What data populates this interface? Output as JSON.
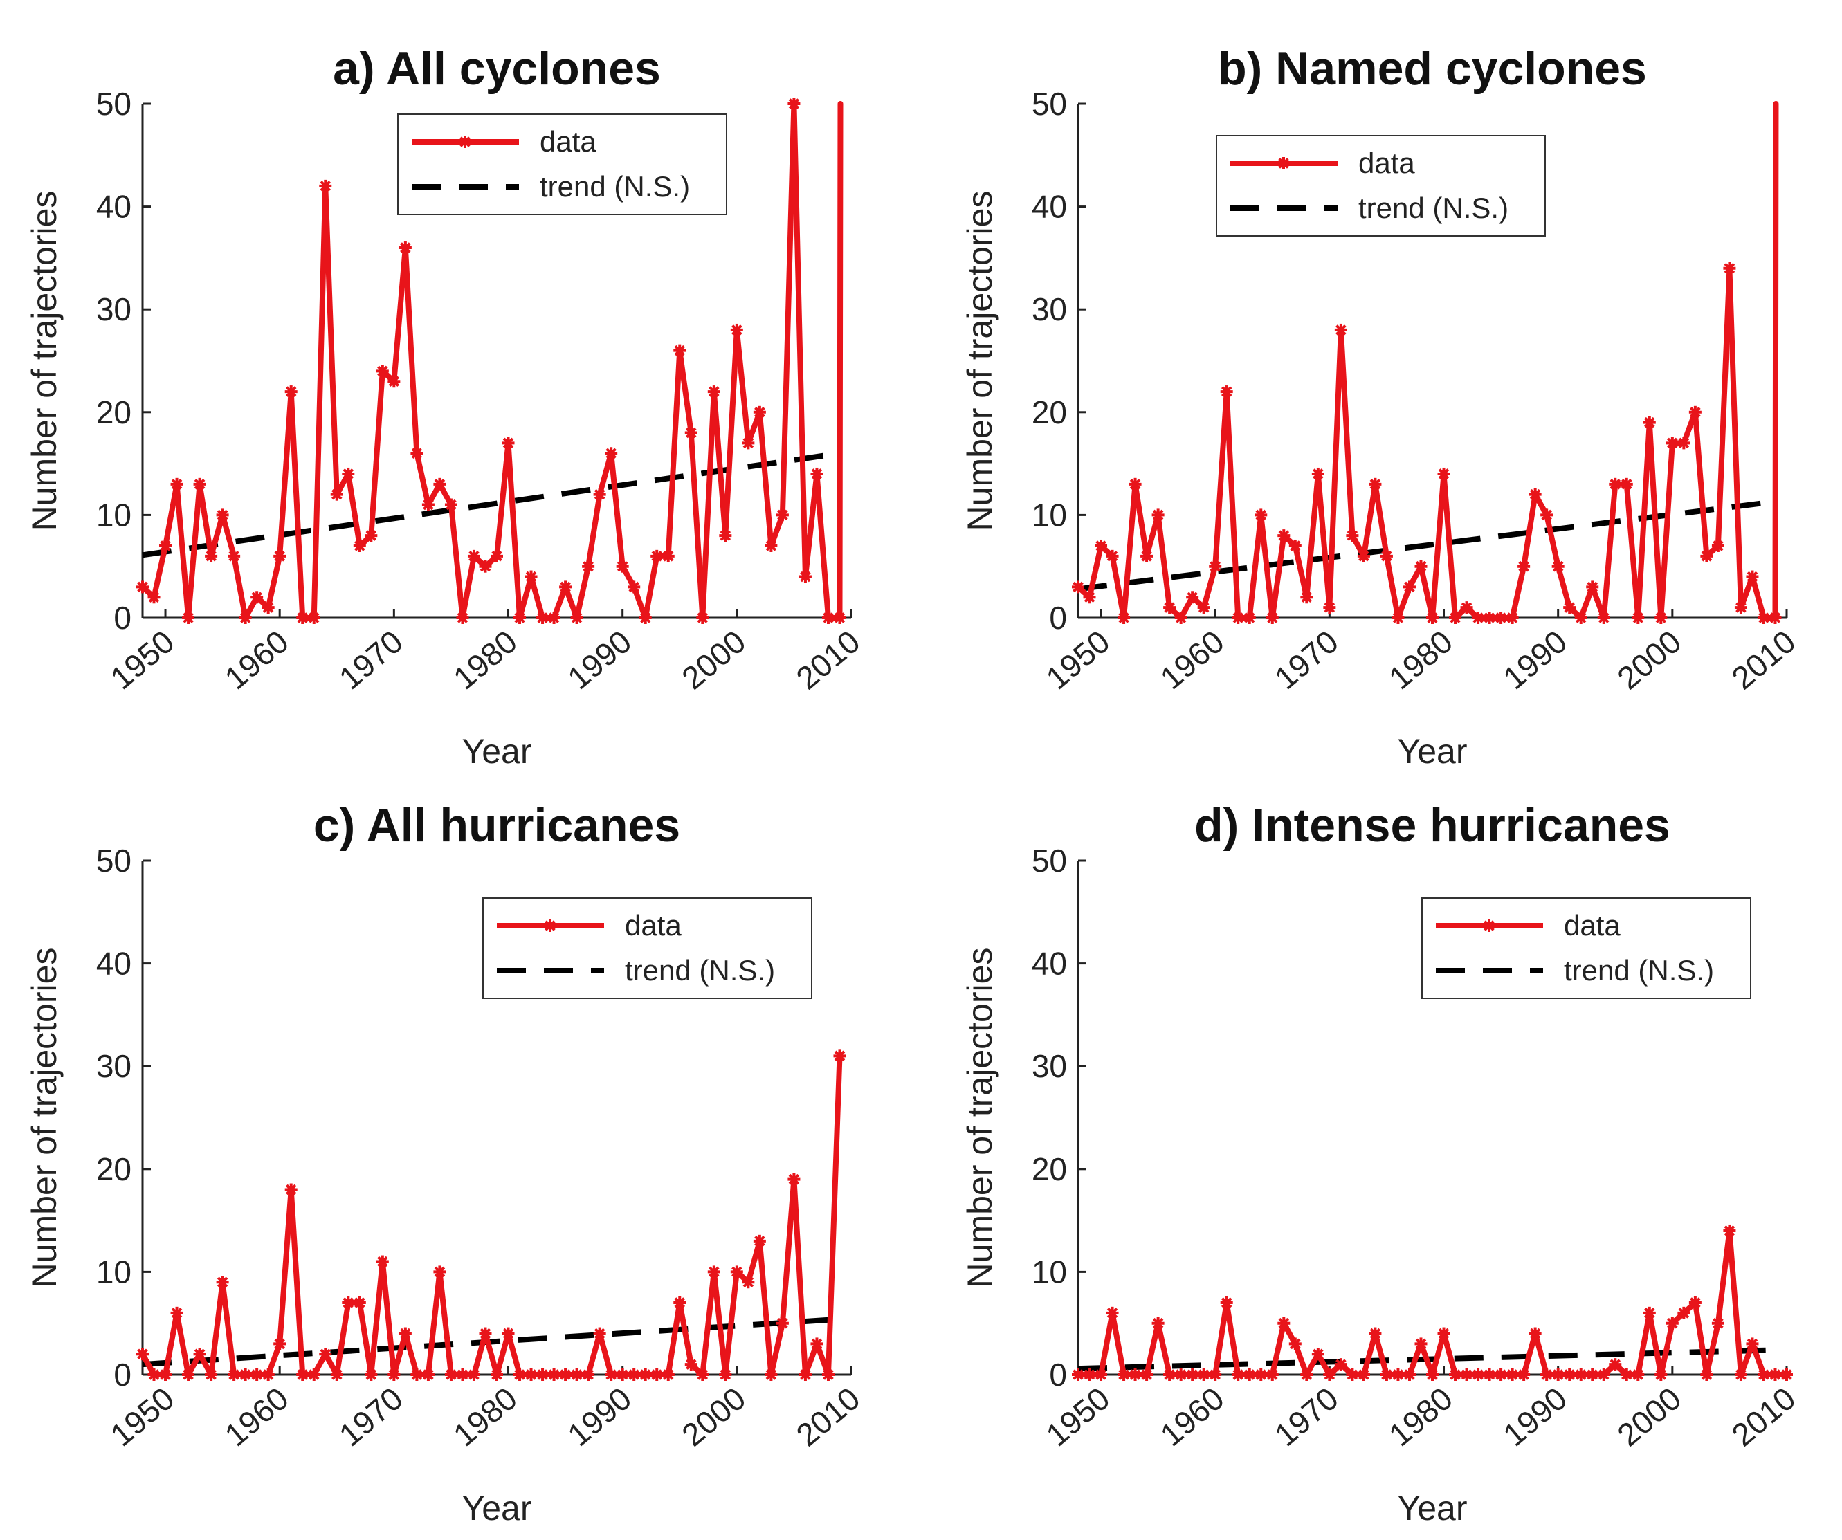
{
  "chart_data": [
    {
      "type": "line",
      "title": "a) All cyclones",
      "xlabel": "Year",
      "ylabel": "Number of trajectories",
      "xlim": [
        1948,
        2010
      ],
      "ylim": [
        0,
        50
      ],
      "xticks": [
        "1950",
        "1960",
        "1970",
        "1980",
        "1990",
        "2000",
        "2010"
      ],
      "yticks": [
        "0",
        "10",
        "20",
        "30",
        "40",
        "50"
      ],
      "legend_position": "top-center",
      "series": [
        {
          "name": "data",
          "color": "#e8141a",
          "x": [
            1948,
            1949,
            1950,
            1951,
            1952,
            1953,
            1954,
            1955,
            1956,
            1957,
            1958,
            1959,
            1960,
            1961,
            1962,
            1963,
            1964,
            1965,
            1966,
            1967,
            1968,
            1969,
            1970,
            1971,
            1972,
            1973,
            1974,
            1975,
            1976,
            1977,
            1978,
            1979,
            1980,
            1981,
            1982,
            1983,
            1984,
            1985,
            1986,
            1987,
            1988,
            1989,
            1990,
            1991,
            1992,
            1993,
            1994,
            1995,
            1996,
            1997,
            1998,
            1999,
            2000,
            2001,
            2002,
            2003,
            2004,
            2005,
            2006,
            2007,
            2008,
            2009
          ],
          "values": [
            3,
            2,
            7,
            13,
            0,
            13,
            6,
            10,
            6,
            0,
            2,
            1,
            6,
            22,
            0,
            0,
            42,
            12,
            14,
            7,
            8,
            24,
            23,
            36,
            16,
            11,
            13,
            11,
            0,
            6,
            5,
            6,
            17,
            0,
            4,
            0,
            0,
            3,
            0,
            5,
            12,
            16,
            5,
            3,
            0,
            6,
            6,
            26,
            18,
            0,
            22,
            8,
            28,
            17,
            20,
            7,
            10,
            50,
            4,
            14,
            0,
            0
          ],
          "clip_top_end_value": 50
        },
        {
          "name": "trend (N.S.)",
          "color": "#000000",
          "dashed": true,
          "x": [
            1948,
            2009
          ],
          "values": [
            6.1,
            16.0
          ]
        }
      ]
    },
    {
      "type": "line",
      "title": "b) Named cyclones",
      "xlabel": "Year",
      "ylabel": "Number of trajectories",
      "xlim": [
        1948,
        2010
      ],
      "ylim": [
        0,
        50
      ],
      "xticks": [
        "1950",
        "1960",
        "1970",
        "1980",
        "1990",
        "2000",
        "2010"
      ],
      "yticks": [
        "0",
        "10",
        "20",
        "30",
        "40",
        "50"
      ],
      "legend_position": "top-center",
      "series": [
        {
          "name": "data",
          "color": "#e8141a",
          "x": [
            1948,
            1949,
            1950,
            1951,
            1952,
            1953,
            1954,
            1955,
            1956,
            1957,
            1958,
            1959,
            1960,
            1961,
            1962,
            1963,
            1964,
            1965,
            1966,
            1967,
            1968,
            1969,
            1970,
            1971,
            1972,
            1973,
            1974,
            1975,
            1976,
            1977,
            1978,
            1979,
            1980,
            1981,
            1982,
            1983,
            1984,
            1985,
            1986,
            1987,
            1988,
            1989,
            1990,
            1991,
            1992,
            1993,
            1994,
            1995,
            1996,
            1997,
            1998,
            1999,
            2000,
            2001,
            2002,
            2003,
            2004,
            2005,
            2006,
            2007,
            2008,
            2009
          ],
          "values": [
            3,
            2,
            7,
            6,
            0,
            13,
            6,
            10,
            1,
            0,
            2,
            1,
            5,
            22,
            0,
            0,
            10,
            0,
            8,
            7,
            2,
            14,
            1,
            28,
            8,
            6,
            13,
            6,
            0,
            3,
            5,
            0,
            14,
            0,
            1,
            0,
            0,
            0,
            0,
            5,
            12,
            10,
            5,
            1,
            0,
            3,
            0,
            13,
            13,
            0,
            19,
            0,
            17,
            17,
            20,
            6,
            7,
            34,
            1,
            4,
            0,
            0
          ],
          "clip_top_end_value": 50
        },
        {
          "name": "trend (N.S.)",
          "color": "#000000",
          "dashed": true,
          "x": [
            1948,
            2009
          ],
          "values": [
            2.8,
            11.3
          ]
        }
      ]
    },
    {
      "type": "line",
      "title": "c) All hurricanes",
      "xlabel": "Year",
      "ylabel": "Number of trajectories",
      "xlim": [
        1948,
        2010
      ],
      "ylim": [
        0,
        50
      ],
      "xticks": [
        "1950",
        "1960",
        "1970",
        "1980",
        "1990",
        "2000",
        "2010"
      ],
      "yticks": [
        "0",
        "10",
        "20",
        "30",
        "40",
        "50"
      ],
      "legend_position": "top-right",
      "series": [
        {
          "name": "data",
          "color": "#e8141a",
          "x": [
            1948,
            1949,
            1950,
            1951,
            1952,
            1953,
            1954,
            1955,
            1956,
            1957,
            1958,
            1959,
            1960,
            1961,
            1962,
            1963,
            1964,
            1965,
            1966,
            1967,
            1968,
            1969,
            1970,
            1971,
            1972,
            1973,
            1974,
            1975,
            1976,
            1977,
            1978,
            1979,
            1980,
            1981,
            1982,
            1983,
            1984,
            1985,
            1986,
            1987,
            1988,
            1989,
            1990,
            1991,
            1992,
            1993,
            1994,
            1995,
            1996,
            1997,
            1998,
            1999,
            2000,
            2001,
            2002,
            2003,
            2004,
            2005,
            2006,
            2007,
            2008,
            2009
          ],
          "values": [
            2,
            0,
            0,
            6,
            0,
            2,
            0,
            9,
            0,
            0,
            0,
            0,
            3,
            18,
            0,
            0,
            2,
            0,
            7,
            7,
            0,
            11,
            0,
            4,
            0,
            0,
            10,
            0,
            0,
            0,
            4,
            0,
            4,
            0,
            0,
            0,
            0,
            0,
            0,
            0,
            4,
            0,
            0,
            0,
            0,
            0,
            0,
            7,
            1,
            0,
            10,
            0,
            10,
            9,
            13,
            0,
            5,
            19,
            0,
            3,
            0,
            31
          ]
        },
        {
          "name": "trend (N.S.)",
          "color": "#000000",
          "dashed": true,
          "x": [
            1948,
            2009
          ],
          "values": [
            1.0,
            5.4
          ]
        }
      ]
    },
    {
      "type": "line",
      "title": "d) Intense hurricanes",
      "xlabel": "Year",
      "ylabel": "Number of trajectories",
      "xlim": [
        1948,
        2010
      ],
      "ylim": [
        0,
        50
      ],
      "xticks": [
        "1950",
        "1960",
        "1970",
        "1980",
        "1990",
        "2000",
        "2010"
      ],
      "yticks": [
        "0",
        "10",
        "20",
        "30",
        "40",
        "50"
      ],
      "legend_position": "top-right",
      "series": [
        {
          "name": "data",
          "color": "#e8141a",
          "x": [
            1948,
            1949,
            1950,
            1951,
            1952,
            1953,
            1954,
            1955,
            1956,
            1957,
            1958,
            1959,
            1960,
            1961,
            1962,
            1963,
            1964,
            1965,
            1966,
            1967,
            1968,
            1969,
            1970,
            1971,
            1972,
            1973,
            1974,
            1975,
            1976,
            1977,
            1978,
            1979,
            1980,
            1981,
            1982,
            1983,
            1984,
            1985,
            1986,
            1987,
            1988,
            1989,
            1990,
            1991,
            1992,
            1993,
            1994,
            1995,
            1996,
            1997,
            1998,
            1999,
            2000,
            2001,
            2002,
            2003,
            2004,
            2005,
            2006,
            2007,
            2008,
            2009,
            2010
          ],
          "values": [
            0,
            0,
            0,
            6,
            0,
            0,
            0,
            5,
            0,
            0,
            0,
            0,
            0,
            7,
            0,
            0,
            0,
            0,
            5,
            3,
            0,
            2,
            0,
            1,
            0,
            0,
            4,
            0,
            0,
            0,
            3,
            0,
            4,
            0,
            0,
            0,
            0,
            0,
            0,
            0,
            4,
            0,
            0,
            0,
            0,
            0,
            0,
            1,
            0,
            0,
            6,
            0,
            5,
            6,
            7,
            0,
            5,
            14,
            0,
            3,
            0,
            0,
            0
          ]
        },
        {
          "name": "trend (N.S.)",
          "color": "#000000",
          "dashed": true,
          "x": [
            1948,
            2009
          ],
          "values": [
            0.6,
            2.4
          ]
        }
      ]
    }
  ]
}
